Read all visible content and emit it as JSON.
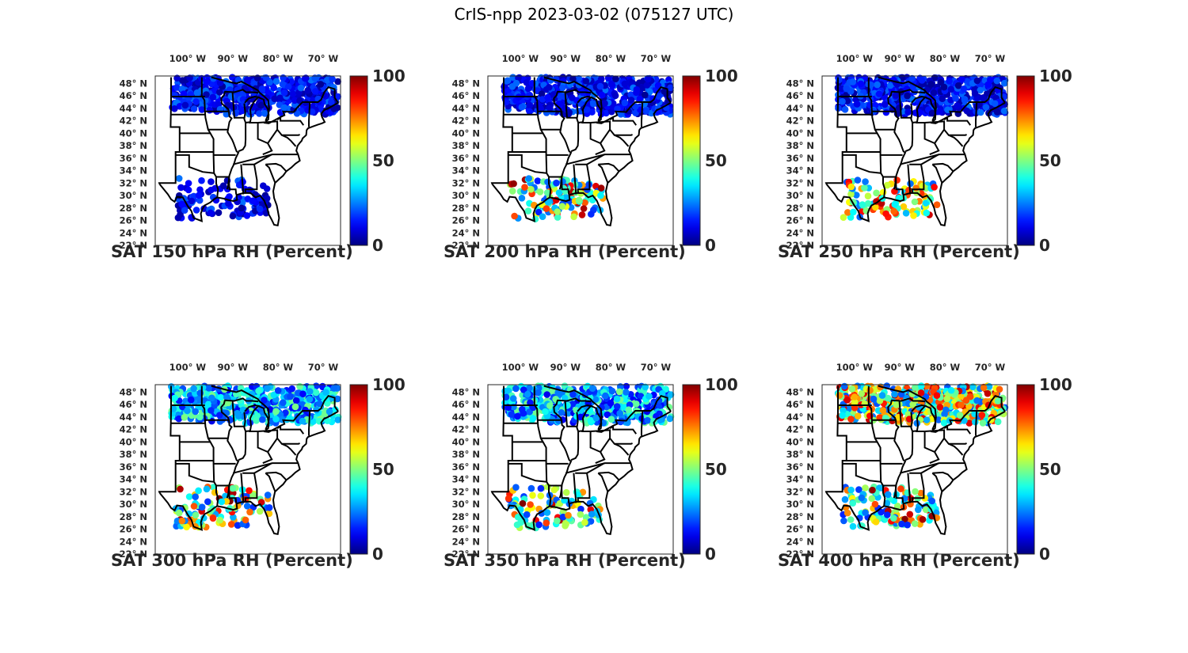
{
  "figure": {
    "title": "CrIS-npp 2023-03-02 (075127 UTC)"
  },
  "panels": [
    {
      "title": "SAT 150 hPa RH (Percent)",
      "level": 150,
      "cloud": {
        "north": "low",
        "south": "low"
      }
    },
    {
      "title": "SAT 200 hPa RH (Percent)",
      "level": 200,
      "cloud": {
        "north": "low",
        "south": "mixed"
      }
    },
    {
      "title": "SAT 250 hPa RH (Percent)",
      "level": 250,
      "cloud": {
        "north": "low",
        "south": "high"
      }
    },
    {
      "title": "SAT 300 hPa RH (Percent)",
      "level": 300,
      "cloud": {
        "north": "mid",
        "south": "mixed"
      }
    },
    {
      "title": "SAT 350 hPa RH (Percent)",
      "level": 350,
      "cloud": {
        "north": "mid",
        "south": "mixed"
      }
    },
    {
      "title": "SAT 400 hPa RH (Percent)",
      "level": 400,
      "cloud": {
        "north": "high",
        "south": "mixed"
      }
    }
  ],
  "axes": {
    "lon_labels": [
      "100",
      "90",
      "80",
      "70"
    ],
    "lon_suffix": "W",
    "lat_labels": [
      "48",
      "46",
      "44",
      "42",
      "40",
      "38",
      "36",
      "34",
      "32",
      "30",
      "28",
      "26",
      "24",
      "22"
    ],
    "lat_suffix": "N",
    "degree": "°"
  },
  "colorbar": {
    "ticks": [
      "100",
      "50",
      "0"
    ],
    "min": 0,
    "max": 100,
    "colormap": "jet"
  },
  "colors": {
    "text": "#262626",
    "map_lines": "#000000"
  }
}
